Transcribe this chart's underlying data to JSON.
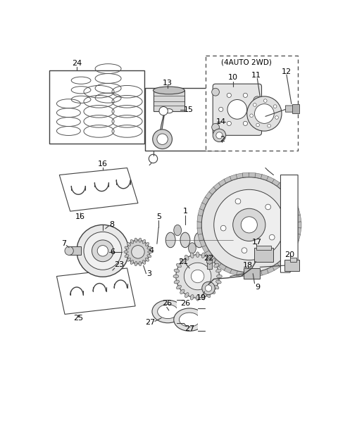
{
  "bg_color": "#ffffff",
  "line_color": "#404040",
  "fig_width": 4.8,
  "fig_height": 6.08,
  "dpi": 100
}
